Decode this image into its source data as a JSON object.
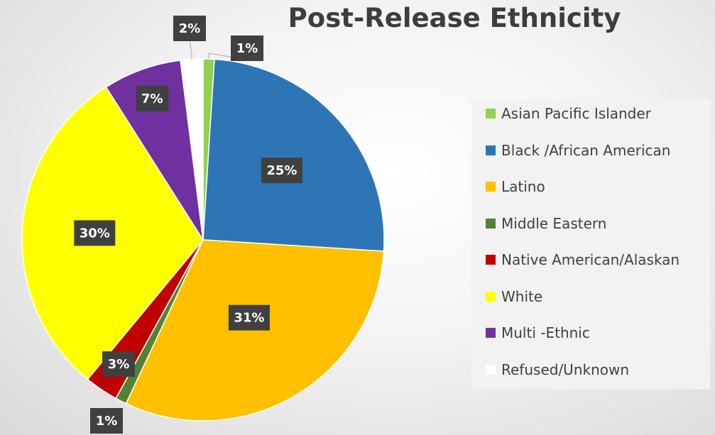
{
  "chart_data": {
    "type": "pie",
    "title": "Post-Release Ethnicity",
    "categories": [
      "Asian Pacific Islander",
      "Black /African American",
      "Latino",
      "Middle Eastern",
      "Native American/Alaskan",
      "White",
      "Multi -Ethnic",
      "Refused/Unknown"
    ],
    "values": [
      1,
      25,
      31,
      1,
      3,
      30,
      7,
      2
    ],
    "data_labels": [
      "1%",
      "25%",
      "31%",
      "1%",
      "3%",
      "30%",
      "7%",
      "2%"
    ],
    "colors": [
      "#92d050",
      "#2e75b6",
      "#ffc000",
      "#548235",
      "#c00000",
      "#ffff00",
      "#7030a0",
      "#ffffff"
    ],
    "legend_position": "right",
    "unit": "%"
  }
}
